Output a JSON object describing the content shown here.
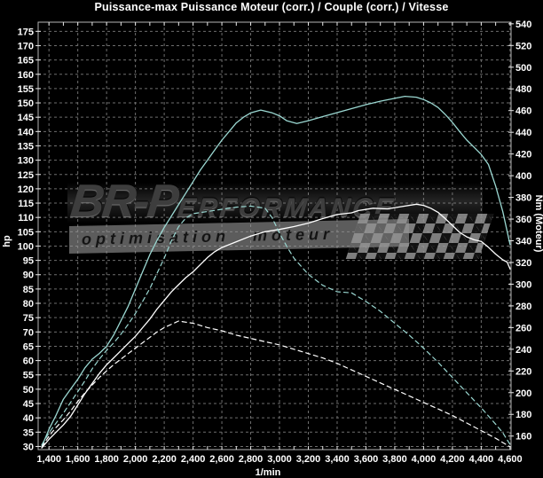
{
  "title": "Puissance-max Puissance Moteur (corr.) / Couple (corr.) / Vitesse",
  "watermark": {
    "brand_lead": "BR-P",
    "brand_rest": "ERFORMANCE",
    "tagline": "optimisation moteur"
  },
  "chart_data": {
    "type": "line",
    "title": "Puissance-max Puissance Moteur (corr.) / Couple (corr.) / Vitesse",
    "background": "#000000",
    "grid": {
      "color": "#6e6e6e",
      "dash": "3,3",
      "horizontal_step_hp": 5,
      "vertical_step_rpm": 200
    },
    "border_color": "#b5b5b5",
    "tick_color": "#e8e8e8",
    "label_color": "#ffffff",
    "accent_color": "#9bd8d2",
    "x_axis": {
      "label": "1/min",
      "min": 1325,
      "max": 4607,
      "minor_tick_step": 100,
      "ticks": [
        {
          "v": 1400,
          "t": "1,400"
        },
        {
          "v": 1600,
          "t": "1,600"
        },
        {
          "v": 1800,
          "t": "1,800"
        },
        {
          "v": 2000,
          "t": "2,000"
        },
        {
          "v": 2200,
          "t": "2,200"
        },
        {
          "v": 2400,
          "t": "2,400"
        },
        {
          "v": 2600,
          "t": "2,600"
        },
        {
          "v": 2800,
          "t": "2,800"
        },
        {
          "v": 3000,
          "t": "3,000"
        },
        {
          "v": 3200,
          "t": "3,200"
        },
        {
          "v": 3400,
          "t": "3,400"
        },
        {
          "v": 3600,
          "t": "3,600"
        },
        {
          "v": 3800,
          "t": "3,800"
        },
        {
          "v": 4000,
          "t": "4,000"
        },
        {
          "v": 4200,
          "t": "4,200"
        },
        {
          "v": 4400,
          "t": "4,400"
        },
        {
          "v": 4600,
          "t": "4,600"
        }
      ]
    },
    "y_left": {
      "label": "hp",
      "min": 28.9,
      "max": 178.2,
      "tick_min": 30,
      "tick_max": 175,
      "tick_step": 5
    },
    "y_right": {
      "label": "Nm (Moteur)",
      "min": 147.5,
      "max": 541.5,
      "tick_min": 160,
      "tick_max": 540,
      "tick_step": 20
    },
    "series": [
      {
        "name": "power-high",
        "axis": "left",
        "color": "#9bd8d2",
        "style": "solid",
        "points": [
          [
            1350,
            30
          ],
          [
            1400,
            36
          ],
          [
            1450,
            41
          ],
          [
            1500,
            46.5
          ],
          [
            1550,
            50
          ],
          [
            1600,
            53.5
          ],
          [
            1650,
            57.5
          ],
          [
            1700,
            60.5
          ],
          [
            1750,
            62.5
          ],
          [
            1800,
            65
          ],
          [
            1850,
            69
          ],
          [
            1900,
            74
          ],
          [
            1950,
            79
          ],
          [
            2000,
            85
          ],
          [
            2050,
            91
          ],
          [
            2100,
            97
          ],
          [
            2150,
            102
          ],
          [
            2200,
            106.5
          ],
          [
            2250,
            110.5
          ],
          [
            2300,
            114.5
          ],
          [
            2350,
            118.5
          ],
          [
            2400,
            122.5
          ],
          [
            2450,
            126.5
          ],
          [
            2500,
            130
          ],
          [
            2550,
            133.5
          ],
          [
            2600,
            137
          ],
          [
            2650,
            140
          ],
          [
            2700,
            143
          ],
          [
            2750,
            145
          ],
          [
            2800,
            146.5
          ],
          [
            2870,
            147.5
          ],
          [
            2950,
            146.5
          ],
          [
            3000,
            145.5
          ],
          [
            3050,
            143.8
          ],
          [
            3120,
            142.8
          ],
          [
            3200,
            143.8
          ],
          [
            3300,
            145.2
          ],
          [
            3400,
            146.6
          ],
          [
            3500,
            148
          ],
          [
            3600,
            149.4
          ],
          [
            3700,
            150.6
          ],
          [
            3800,
            151.6
          ],
          [
            3870,
            152.3
          ],
          [
            3950,
            152
          ],
          [
            4000,
            151.2
          ],
          [
            4050,
            150
          ],
          [
            4100,
            148.4
          ],
          [
            4150,
            146
          ],
          [
            4200,
            143.2
          ],
          [
            4250,
            140
          ],
          [
            4300,
            137
          ],
          [
            4350,
            134.5
          ],
          [
            4400,
            132
          ],
          [
            4450,
            128.5
          ],
          [
            4500,
            121
          ],
          [
            4550,
            112
          ],
          [
            4600,
            100.5
          ]
        ]
      },
      {
        "name": "power-low",
        "axis": "left",
        "color": "#ffffff",
        "style": "solid",
        "points": [
          [
            1350,
            29.5
          ],
          [
            1400,
            32.5
          ],
          [
            1450,
            35
          ],
          [
            1500,
            37.5
          ],
          [
            1550,
            40.5
          ],
          [
            1600,
            44.5
          ],
          [
            1650,
            48.5
          ],
          [
            1700,
            52
          ],
          [
            1750,
            55.5
          ],
          [
            1800,
            58.5
          ],
          [
            1850,
            61
          ],
          [
            1900,
            63.5
          ],
          [
            1950,
            66
          ],
          [
            2000,
            68.5
          ],
          [
            2050,
            71.5
          ],
          [
            2100,
            74.5
          ],
          [
            2150,
            78
          ],
          [
            2200,
            81
          ],
          [
            2250,
            84
          ],
          [
            2300,
            86.5
          ],
          [
            2350,
            89
          ],
          [
            2400,
            91
          ],
          [
            2450,
            93.5
          ],
          [
            2500,
            96
          ],
          [
            2550,
            98
          ],
          [
            2600,
            99.5
          ],
          [
            2700,
            101.5
          ],
          [
            2800,
            103.5
          ],
          [
            2900,
            105
          ],
          [
            3000,
            105.8
          ],
          [
            3100,
            106.8
          ],
          [
            3200,
            108
          ],
          [
            3300,
            109.6
          ],
          [
            3400,
            111
          ],
          [
            3500,
            111.6
          ],
          [
            3550,
            112.4
          ],
          [
            3650,
            113.2
          ],
          [
            3750,
            113
          ],
          [
            3850,
            113.8
          ],
          [
            3950,
            114.6
          ],
          [
            4000,
            114.2
          ],
          [
            4050,
            113.2
          ],
          [
            4100,
            111.8
          ],
          [
            4150,
            109.6
          ],
          [
            4200,
            107.2
          ],
          [
            4250,
            104.8
          ],
          [
            4300,
            103.2
          ],
          [
            4350,
            102.2
          ],
          [
            4400,
            101.6
          ],
          [
            4450,
            99.6
          ],
          [
            4500,
            97.2
          ],
          [
            4550,
            95.2
          ],
          [
            4580,
            94.4
          ],
          [
            4600,
            92
          ]
        ]
      },
      {
        "name": "torque-high",
        "axis": "right",
        "color": "#9bd8d2",
        "style": "dashed",
        "points": [
          [
            1350,
            152
          ],
          [
            1400,
            163
          ],
          [
            1450,
            172
          ],
          [
            1500,
            181
          ],
          [
            1550,
            191
          ],
          [
            1600,
            201
          ],
          [
            1650,
            211
          ],
          [
            1700,
            222
          ],
          [
            1750,
            231
          ],
          [
            1800,
            239
          ],
          [
            1850,
            246
          ],
          [
            1900,
            254
          ],
          [
            1950,
            263
          ],
          [
            2000,
            273
          ],
          [
            2050,
            284
          ],
          [
            2100,
            296
          ],
          [
            2150,
            310
          ],
          [
            2200,
            324
          ],
          [
            2250,
            340
          ],
          [
            2300,
            353
          ],
          [
            2350,
            361
          ],
          [
            2400,
            365
          ],
          [
            2500,
            367
          ],
          [
            2600,
            369
          ],
          [
            2700,
            371
          ],
          [
            2800,
            372
          ],
          [
            2900,
            370
          ],
          [
            2950,
            361
          ],
          [
            3000,
            347
          ],
          [
            3050,
            335
          ],
          [
            3100,
            324
          ],
          [
            3200,
            309
          ],
          [
            3300,
            299
          ],
          [
            3400,
            293
          ],
          [
            3500,
            292
          ],
          [
            3600,
            284
          ],
          [
            3700,
            275
          ],
          [
            3800,
            264
          ],
          [
            3900,
            253
          ],
          [
            4000,
            241
          ],
          [
            4100,
            228
          ],
          [
            4200,
            214
          ],
          [
            4300,
            200
          ],
          [
            4400,
            186
          ],
          [
            4500,
            171
          ],
          [
            4550,
            163
          ],
          [
            4610,
            150
          ]
        ]
      },
      {
        "name": "torque-low",
        "axis": "right",
        "color": "#ffffff",
        "style": "dashed",
        "points": [
          [
            1350,
            150
          ],
          [
            1400,
            160
          ],
          [
            1450,
            168
          ],
          [
            1500,
            175
          ],
          [
            1550,
            183
          ],
          [
            1600,
            192
          ],
          [
            1650,
            200
          ],
          [
            1700,
            207
          ],
          [
            1750,
            214
          ],
          [
            1800,
            220
          ],
          [
            1850,
            226
          ],
          [
            1900,
            231
          ],
          [
            1950,
            236
          ],
          [
            2000,
            241
          ],
          [
            2050,
            246
          ],
          [
            2100,
            251
          ],
          [
            2150,
            256
          ],
          [
            2200,
            260
          ],
          [
            2250,
            263
          ],
          [
            2300,
            266
          ],
          [
            2350,
            265
          ],
          [
            2400,
            264
          ],
          [
            2500,
            260
          ],
          [
            2600,
            257
          ],
          [
            2700,
            253
          ],
          [
            2800,
            250
          ],
          [
            2900,
            247
          ],
          [
            3000,
            244
          ],
          [
            3100,
            240
          ],
          [
            3200,
            236
          ],
          [
            3300,
            232
          ],
          [
            3400,
            227
          ],
          [
            3500,
            221
          ],
          [
            3600,
            215
          ],
          [
            3700,
            209
          ],
          [
            3800,
            203
          ],
          [
            3900,
            197
          ],
          [
            4000,
            191
          ],
          [
            4100,
            185
          ],
          [
            4200,
            179
          ],
          [
            4300,
            172
          ],
          [
            4400,
            165
          ],
          [
            4500,
            158
          ],
          [
            4600,
            150
          ]
        ]
      }
    ]
  }
}
